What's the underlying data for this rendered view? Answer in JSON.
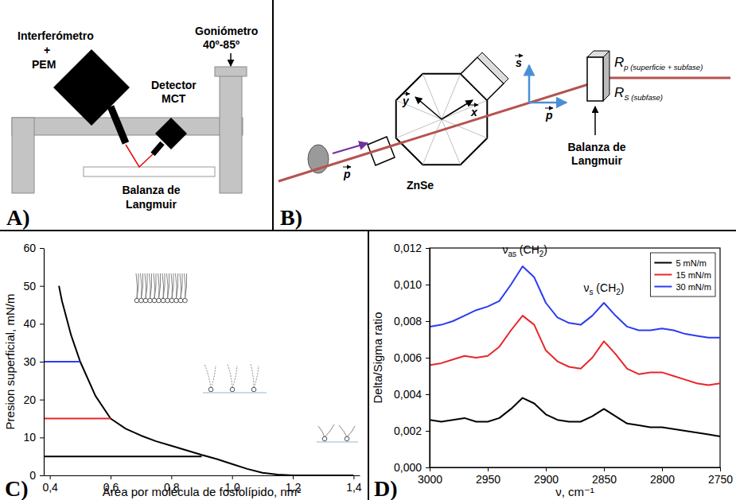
{
  "panels": {
    "A": {
      "label": "A)",
      "texts": [
        "Interferómetro",
        "+",
        "PEM",
        "Detector",
        "MCT",
        "Goniómetro",
        "40º-85º",
        "Balanza de",
        "Langmuir"
      ]
    },
    "B": {
      "label": "B)",
      "texts": [
        "ZnSe",
        "Balanza de",
        "Langmuir"
      ],
      "vectors": [
        "p",
        "y",
        "x",
        "s",
        "p"
      ],
      "beams": [
        {
          "main": "R",
          "sub": "p (superficie + subfase)"
        },
        {
          "main": "R",
          "sub": "S (subfase)"
        }
      ]
    }
  },
  "chart_data": [
    {
      "type": "line",
      "label": "C)",
      "x_label": "Área por molécula de fosfolípido, nm²",
      "y_label": "Presion superficial, mN/m",
      "xlim": [
        0.38,
        1.42
      ],
      "xticks": [
        {
          "value": 0.4,
          "label": "0,4"
        },
        {
          "value": 0.6,
          "label": "0,6"
        },
        {
          "value": 0.8,
          "label": "0,8"
        },
        {
          "value": 1.0,
          "label": "1,0"
        },
        {
          "value": 1.2,
          "label": "1,2"
        },
        {
          "value": 1.4,
          "label": "1,4"
        }
      ],
      "ylim": [
        0,
        60
      ],
      "yticks": [
        0,
        10,
        20,
        30,
        40,
        50,
        60
      ],
      "series": [
        {
          "color": "#000000",
          "x": [
            0.43,
            0.44,
            0.45,
            0.47,
            0.5,
            0.55,
            0.6,
            0.65,
            0.7,
            0.75,
            0.8,
            0.85,
            0.9,
            0.95,
            1.0,
            1.05,
            1.1,
            1.15,
            1.2,
            1.3,
            1.4
          ],
          "values": [
            50,
            46,
            43,
            37,
            30,
            21,
            15,
            12.3,
            10.5,
            9,
            7.8,
            6.6,
            5.4,
            4.3,
            3,
            1.7,
            0.7,
            0.2,
            0,
            0,
            0
          ]
        },
        {
          "color": "#000000",
          "x": [
            0.38,
            0.9
          ],
          "values": [
            5,
            5
          ]
        },
        {
          "color": "#e8262b",
          "x": [
            0.38,
            0.6
          ],
          "values": [
            15,
            15
          ]
        },
        {
          "color": "#2b3cf0",
          "x": [
            0.38,
            0.5
          ],
          "values": [
            30,
            30
          ]
        }
      ]
    },
    {
      "type": "line",
      "label": "D)",
      "x_label": "ν, cm⁻¹",
      "y_label": "Delta/Sigma ratio",
      "xlim": [
        3000,
        2750
      ],
      "xticks": [
        3000,
        2950,
        2900,
        2850,
        2800,
        2750
      ],
      "ylim": [
        0,
        0.012
      ],
      "yticks": [
        {
          "value": 0,
          "label": "0,000"
        },
        {
          "value": 0.002,
          "label": "0,002"
        },
        {
          "value": 0.004,
          "label": "0,004"
        },
        {
          "value": 0.006,
          "label": "0,006"
        },
        {
          "value": 0.008,
          "label": "0,008"
        },
        {
          "value": 0.01,
          "label": "0,010"
        },
        {
          "value": 0.012,
          "label": "0,012"
        }
      ],
      "legend": "upper right",
      "x": [
        3000,
        2990,
        2980,
        2970,
        2960,
        2950,
        2940,
        2930,
        2920,
        2910,
        2900,
        2890,
        2880,
        2870,
        2860,
        2850,
        2840,
        2830,
        2820,
        2810,
        2800,
        2790,
        2780,
        2770,
        2760,
        2750
      ],
      "series": [
        {
          "name": "5 mN/m",
          "color": "#000000",
          "values": [
            0.0026,
            0.0025,
            0.0026,
            0.0027,
            0.0025,
            0.0025,
            0.0027,
            0.0032,
            0.0038,
            0.0035,
            0.0029,
            0.0026,
            0.0025,
            0.0025,
            0.0028,
            0.0032,
            0.0028,
            0.0024,
            0.0023,
            0.0022,
            0.0022,
            0.0021,
            0.002,
            0.0019,
            0.0018,
            0.0017
          ]
        },
        {
          "name": "15 mN/m",
          "color": "#e8262b",
          "values": [
            0.0056,
            0.0057,
            0.0059,
            0.0061,
            0.006,
            0.0061,
            0.0066,
            0.0075,
            0.0083,
            0.0078,
            0.0064,
            0.0058,
            0.0055,
            0.0054,
            0.006,
            0.0069,
            0.0062,
            0.0054,
            0.0051,
            0.0052,
            0.0052,
            0.005,
            0.0048,
            0.0046,
            0.0045,
            0.0046
          ]
        },
        {
          "name": "30 mN/m",
          "color": "#2b3cf0",
          "values": [
            0.0077,
            0.0078,
            0.008,
            0.0083,
            0.0086,
            0.0088,
            0.0091,
            0.01,
            0.011,
            0.0104,
            0.009,
            0.0082,
            0.0079,
            0.0078,
            0.0083,
            0.009,
            0.0083,
            0.0077,
            0.0075,
            0.0075,
            0.0076,
            0.0075,
            0.0073,
            0.0072,
            0.0071,
            0.0071
          ]
        }
      ],
      "annotations": [
        {
          "text": [
            "ν",
            "as",
            " (CH",
            "2",
            ")"
          ],
          "x": 2918,
          "y": 0.0117
        },
        {
          "text": [
            "ν",
            "s",
            " (CH",
            "2",
            ")"
          ],
          "x": 2850,
          "y": 0.0096
        }
      ]
    }
  ]
}
